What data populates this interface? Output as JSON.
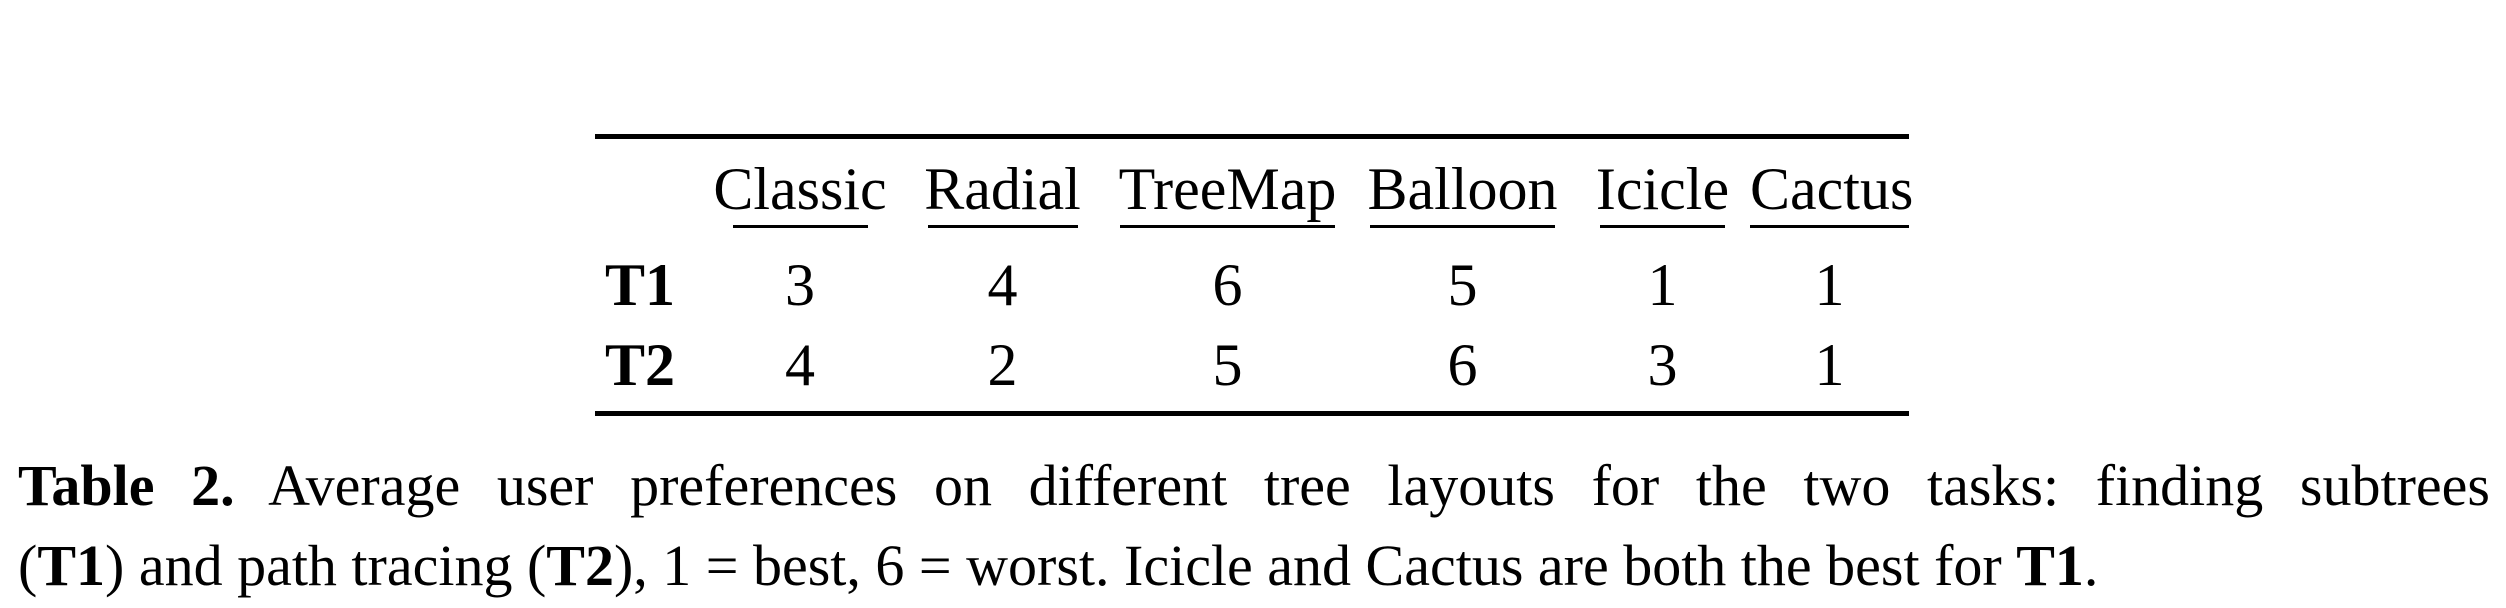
{
  "table": {
    "columns": [
      "Classic",
      "Radial",
      "TreeMap",
      "Balloon",
      "Icicle",
      "Cactus"
    ],
    "rows": [
      {
        "label": "T1",
        "values": [
          "3",
          "4",
          "6",
          "5",
          "1",
          "1"
        ]
      },
      {
        "label": "T2",
        "values": [
          "4",
          "2",
          "5",
          "6",
          "3",
          "1"
        ]
      }
    ]
  },
  "caption": {
    "label": "Table 2.",
    "line1_text": "Average user preferences on different tree layouts for the two tasks: finding subtrees",
    "line2_a": "(",
    "t1": "T1",
    "line2_b": ") and path tracing (",
    "t2": "T2",
    "line2_c": "), 1 = best, 6 = worst. Icicle and Cactus are both the best for ",
    "t1_end": "T1",
    "line2_d": "."
  }
}
